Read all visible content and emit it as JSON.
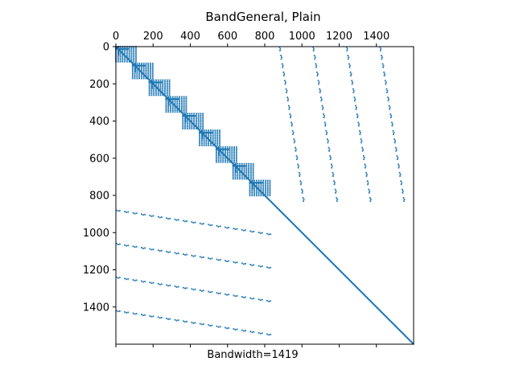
{
  "chart_data": {
    "type": "scatter",
    "subtype": "sparsity-pattern (spy plot)",
    "title": "BandGeneral, Plain",
    "xlabel": "Bandwidth=1419",
    "ylabel": "",
    "xlim": [
      0,
      1600
    ],
    "ylim": [
      1600,
      0
    ],
    "xticks": [
      0,
      200,
      400,
      600,
      800,
      1000,
      1200,
      1400
    ],
    "yticks": [
      0,
      200,
      400,
      600,
      800,
      1000,
      1200,
      1400
    ],
    "xtick_labels": [
      "0",
      "200",
      "400",
      "600",
      "800",
      "1000",
      "1200",
      "1400"
    ],
    "ytick_labels": [
      "0",
      "200",
      "400",
      "600",
      "800",
      "1000",
      "1200",
      "1400"
    ],
    "x_axis_labels_position": "top",
    "grid": false,
    "marker_color": "#1f77b4",
    "matrix_size": 1600,
    "blocks": {
      "main_diagonal": {
        "from": 0,
        "to": 1600
      },
      "diagonal_block_pattern": {
        "block_starts": [
          0,
          90,
          180,
          270,
          360,
          450,
          540,
          630,
          720
        ],
        "block_size": 90,
        "coupling_band_width": 120
      },
      "upper_right_columns": {
        "column_starts": [
          880,
          1060,
          1240,
          1420
        ],
        "row_range": [
          0,
          820
        ],
        "step_row": 45,
        "step_col": 7
      },
      "lower_left_rows": {
        "row_starts": [
          880,
          1060,
          1240,
          1420
        ],
        "col_range": [
          0,
          820
        ],
        "step_col": 45,
        "step_row": 7
      }
    }
  }
}
